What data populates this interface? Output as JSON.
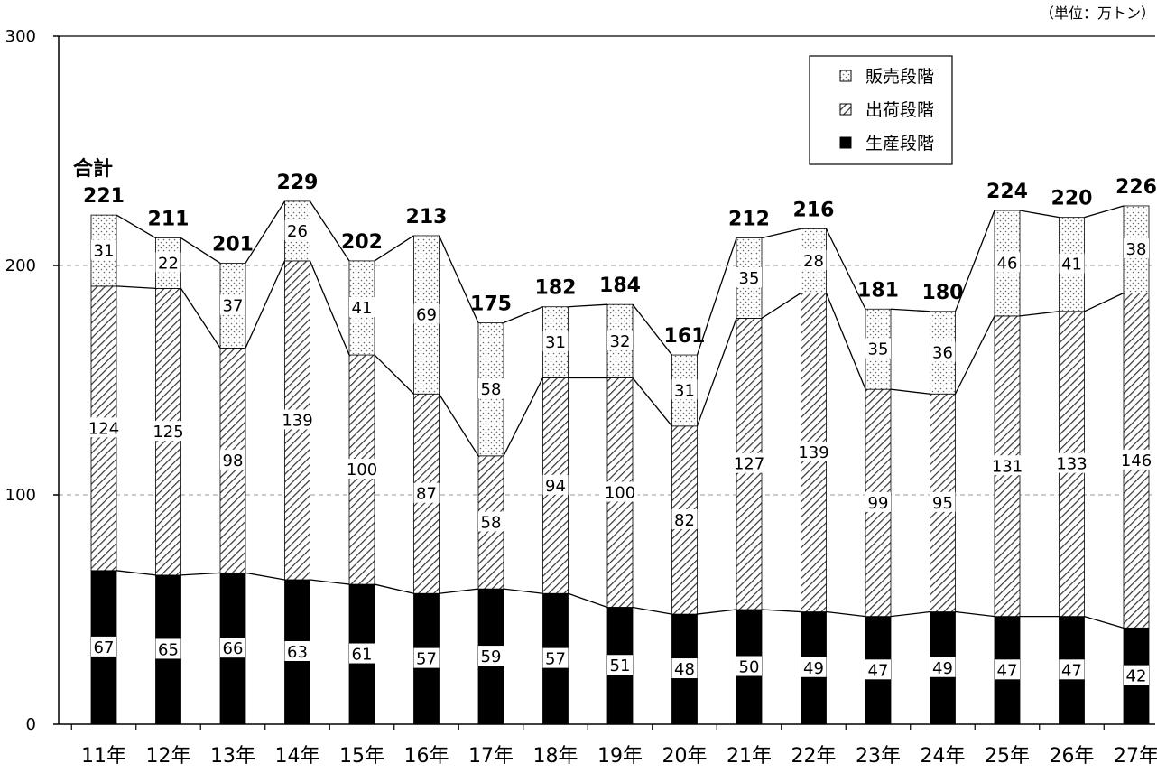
{
  "chart_data": {
    "type": "bar",
    "stacked": true,
    "unit_label": "（単位：万トン）",
    "total_prefix": "合計",
    "categories": [
      "11年",
      "12年",
      "13年",
      "14年",
      "15年",
      "16年",
      "17年",
      "18年",
      "19年",
      "20年",
      "21年",
      "22年",
      "23年",
      "24年",
      "25年",
      "26年",
      "27年"
    ],
    "series": [
      {
        "name": "生産段階",
        "values": [
          67,
          65,
          66,
          63,
          61,
          57,
          59,
          57,
          51,
          48,
          50,
          49,
          47,
          49,
          47,
          47,
          42
        ],
        "fill": "#000000"
      },
      {
        "name": "出荷段階",
        "values": [
          124,
          125,
          98,
          139,
          100,
          87,
          58,
          94,
          100,
          82,
          127,
          139,
          99,
          95,
          131,
          133,
          146
        ],
        "fill": "hatch"
      },
      {
        "name": "販売段階",
        "values": [
          31,
          22,
          37,
          26,
          41,
          69,
          58,
          31,
          32,
          31,
          35,
          28,
          35,
          36,
          46,
          41,
          38
        ],
        "fill": "dots"
      }
    ],
    "totals": [
      221,
      211,
      201,
      229,
      202,
      213,
      175,
      182,
      184,
      161,
      212,
      216,
      181,
      180,
      224,
      220,
      226
    ],
    "ylim": [
      0,
      300
    ],
    "yticks": [
      "0",
      "100",
      "200",
      "300"
    ],
    "grid": true,
    "legend_position": "top-right"
  }
}
